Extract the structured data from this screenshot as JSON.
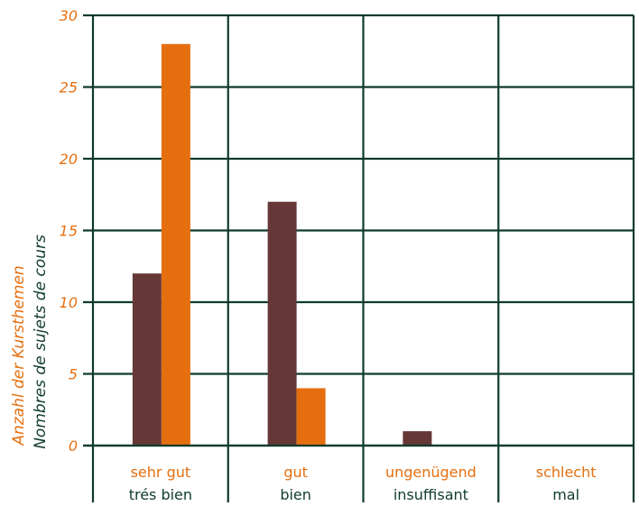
{
  "chart_data": {
    "type": "bar",
    "categories": [
      {
        "de": "sehr gut",
        "fr": "trés bien"
      },
      {
        "de": "gut",
        "fr": "bien"
      },
      {
        "de": "ungenügend",
        "fr": "insuffisant"
      },
      {
        "de": "schlecht",
        "fr": "mal"
      }
    ],
    "series": [
      {
        "values": [
          12,
          17,
          1,
          0
        ],
        "color": "#653737"
      },
      {
        "values": [
          28,
          4,
          0,
          0
        ],
        "color": "#e56f0f"
      }
    ],
    "ylabel": {
      "de": "Anzahl der Kursthemen",
      "fr": "Nombres de sujets de cours"
    },
    "ylim": [
      0,
      30
    ],
    "yticks": [
      0,
      5,
      10,
      15,
      20,
      25,
      30
    ],
    "grid": true,
    "grid_color": "#0f3b2a",
    "label_color_de": "#e56f0f",
    "label_color_fr": "#0f3b2a"
  }
}
